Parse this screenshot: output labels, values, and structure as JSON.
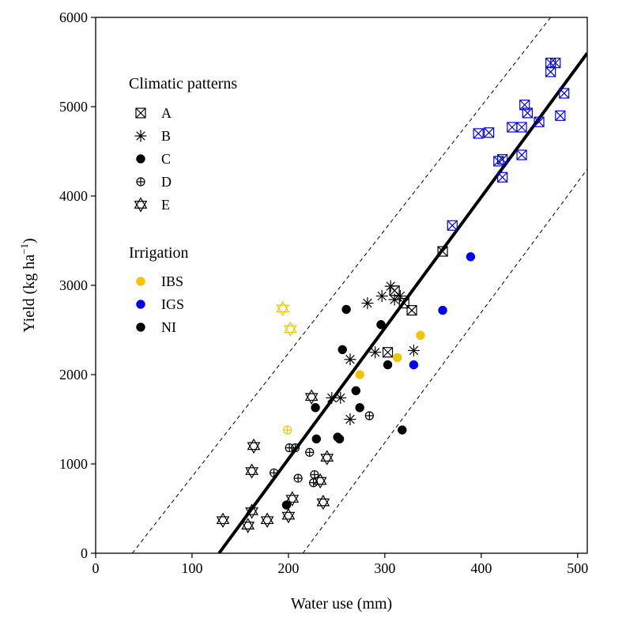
{
  "chart_data": {
    "type": "scatter",
    "xlabel": "Water use (mm)",
    "ylabel_main": "Yield  (kg ha",
    "ylabel_sup": "−1",
    "ylabel_close": ")",
    "xlim": [
      0,
      510
    ],
    "ylim": [
      0,
      6000
    ],
    "x_ticks": [
      0,
      100,
      200,
      300,
      400,
      500
    ],
    "x_tick_labels": [
      "0",
      "100",
      "200",
      "300",
      "400",
      "500"
    ],
    "y_ticks": [
      0,
      1000,
      2000,
      3000,
      4000,
      5000,
      6000
    ],
    "y_tick_labels": [
      "0",
      "1000",
      "2000",
      "3000",
      "4000",
      "5000",
      "6000"
    ],
    "grid": false,
    "legend_location": "upper-left",
    "legend_groups": [
      {
        "title": "Climatic patterns",
        "entries": [
          {
            "label": "A",
            "marker": "square-x"
          },
          {
            "label": "B",
            "marker": "asterisk"
          },
          {
            "label": "C",
            "marker": "filled-circle"
          },
          {
            "label": "D",
            "marker": "circle-plus"
          },
          {
            "label": "E",
            "marker": "star-of-david"
          }
        ]
      },
      {
        "title": "Irrigation",
        "entries": [
          {
            "label": "IBS",
            "marker": "filled-circle",
            "color": "#f5c400"
          },
          {
            "label": "IGS",
            "marker": "filled-circle",
            "color": "#0000ee"
          },
          {
            "label": "NI",
            "marker": "filled-circle",
            "color": "#000000"
          }
        ]
      }
    ],
    "colors": {
      "IBS": "#f5c400",
      "IGS": "#0000ee",
      "NI": "#000000"
    },
    "regression_line": {
      "x": [
        128,
        510
      ],
      "y": [
        0,
        5600
      ],
      "style": "solid"
    },
    "bound_lines": [
      {
        "x": [
          38,
          472
        ],
        "y": [
          0,
          6000
        ],
        "style": "dashed"
      },
      {
        "x": [
          215,
          510
        ],
        "y": [
          0,
          4300
        ],
        "style": "dashed"
      }
    ],
    "series": [
      {
        "name": "A",
        "marker": "square-x",
        "points": [
          [
            360,
            3380,
            "NI"
          ],
          [
            370,
            3670,
            "IGS"
          ],
          [
            397,
            4700,
            "IGS"
          ],
          [
            408,
            4710,
            "IGS"
          ],
          [
            418,
            4390,
            "IGS"
          ],
          [
            422,
            4410,
            "IGS"
          ],
          [
            422,
            4210,
            "IGS"
          ],
          [
            432,
            4770,
            "IGS"
          ],
          [
            442,
            4770,
            "IGS"
          ],
          [
            442,
            4460,
            "IGS"
          ],
          [
            445,
            5020,
            "IGS"
          ],
          [
            448,
            4930,
            "IGS"
          ],
          [
            460,
            4830,
            "IGS"
          ],
          [
            472,
            5390,
            "IGS"
          ],
          [
            472,
            5490,
            "IGS"
          ],
          [
            477,
            5490,
            "IGS"
          ],
          [
            482,
            4900,
            "IGS"
          ],
          [
            486,
            5150,
            "IGS"
          ],
          [
            303,
            2250,
            "NI"
          ],
          [
            310,
            2940,
            "NI"
          ],
          [
            320,
            2800,
            "NI"
          ],
          [
            328,
            2720,
            "NI"
          ]
        ]
      },
      {
        "name": "B",
        "marker": "asterisk",
        "points": [
          [
            245,
            1740,
            "NI"
          ],
          [
            254,
            1740,
            "NI"
          ],
          [
            264,
            2170,
            "NI"
          ],
          [
            264,
            1500,
            "NI"
          ],
          [
            282,
            2800,
            "NI"
          ],
          [
            290,
            2250,
            "NI"
          ],
          [
            297,
            2880,
            "NI"
          ],
          [
            306,
            2990,
            "NI"
          ],
          [
            310,
            2840,
            "NI"
          ],
          [
            316,
            2880,
            "NI"
          ],
          [
            330,
            2270,
            "NI"
          ]
        ]
      },
      {
        "name": "C",
        "marker": "filled-circle",
        "points": [
          [
            198,
            540,
            "NI"
          ],
          [
            228,
            1630,
            "NI"
          ],
          [
            229,
            1280,
            "NI"
          ],
          [
            251,
            1300,
            "NI"
          ],
          [
            253,
            1280,
            "NI"
          ],
          [
            256,
            2280,
            "NI"
          ],
          [
            260,
            2730,
            "NI"
          ],
          [
            270,
            1820,
            "NI"
          ],
          [
            274,
            1630,
            "NI"
          ],
          [
            296,
            2560,
            "NI"
          ],
          [
            303,
            2110,
            "NI"
          ],
          [
            318,
            1380,
            "NI"
          ],
          [
            274,
            2000,
            "IBS"
          ],
          [
            313,
            2190,
            "IBS"
          ],
          [
            337,
            2440,
            "IBS"
          ],
          [
            330,
            2110,
            "IGS"
          ],
          [
            360,
            2720,
            "IGS"
          ],
          [
            389,
            3320,
            "IGS"
          ]
        ]
      },
      {
        "name": "D",
        "marker": "circle-plus",
        "points": [
          [
            185,
            900,
            "NI"
          ],
          [
            201,
            1180,
            "NI"
          ],
          [
            207,
            1180,
            "NI"
          ],
          [
            210,
            840,
            "NI"
          ],
          [
            222,
            1130,
            "NI"
          ],
          [
            226,
            790,
            "NI"
          ],
          [
            227,
            880,
            "NI"
          ],
          [
            284,
            1540,
            "NI"
          ],
          [
            199,
            1380,
            "IBS"
          ]
        ]
      },
      {
        "name": "E",
        "marker": "star-of-david",
        "points": [
          [
            132,
            370,
            "NI"
          ],
          [
            158,
            310,
            "NI"
          ],
          [
            162,
            470,
            "NI"
          ],
          [
            162,
            920,
            "NI"
          ],
          [
            164,
            1200,
            "NI"
          ],
          [
            178,
            370,
            "NI"
          ],
          [
            200,
            420,
            "NI"
          ],
          [
            204,
            610,
            "NI"
          ],
          [
            224,
            1750,
            "NI"
          ],
          [
            233,
            810,
            "NI"
          ],
          [
            236,
            570,
            "NI"
          ],
          [
            240,
            1070,
            "NI"
          ],
          [
            194,
            2740,
            "IBS"
          ],
          [
            202,
            2510,
            "IBS"
          ]
        ]
      }
    ]
  }
}
